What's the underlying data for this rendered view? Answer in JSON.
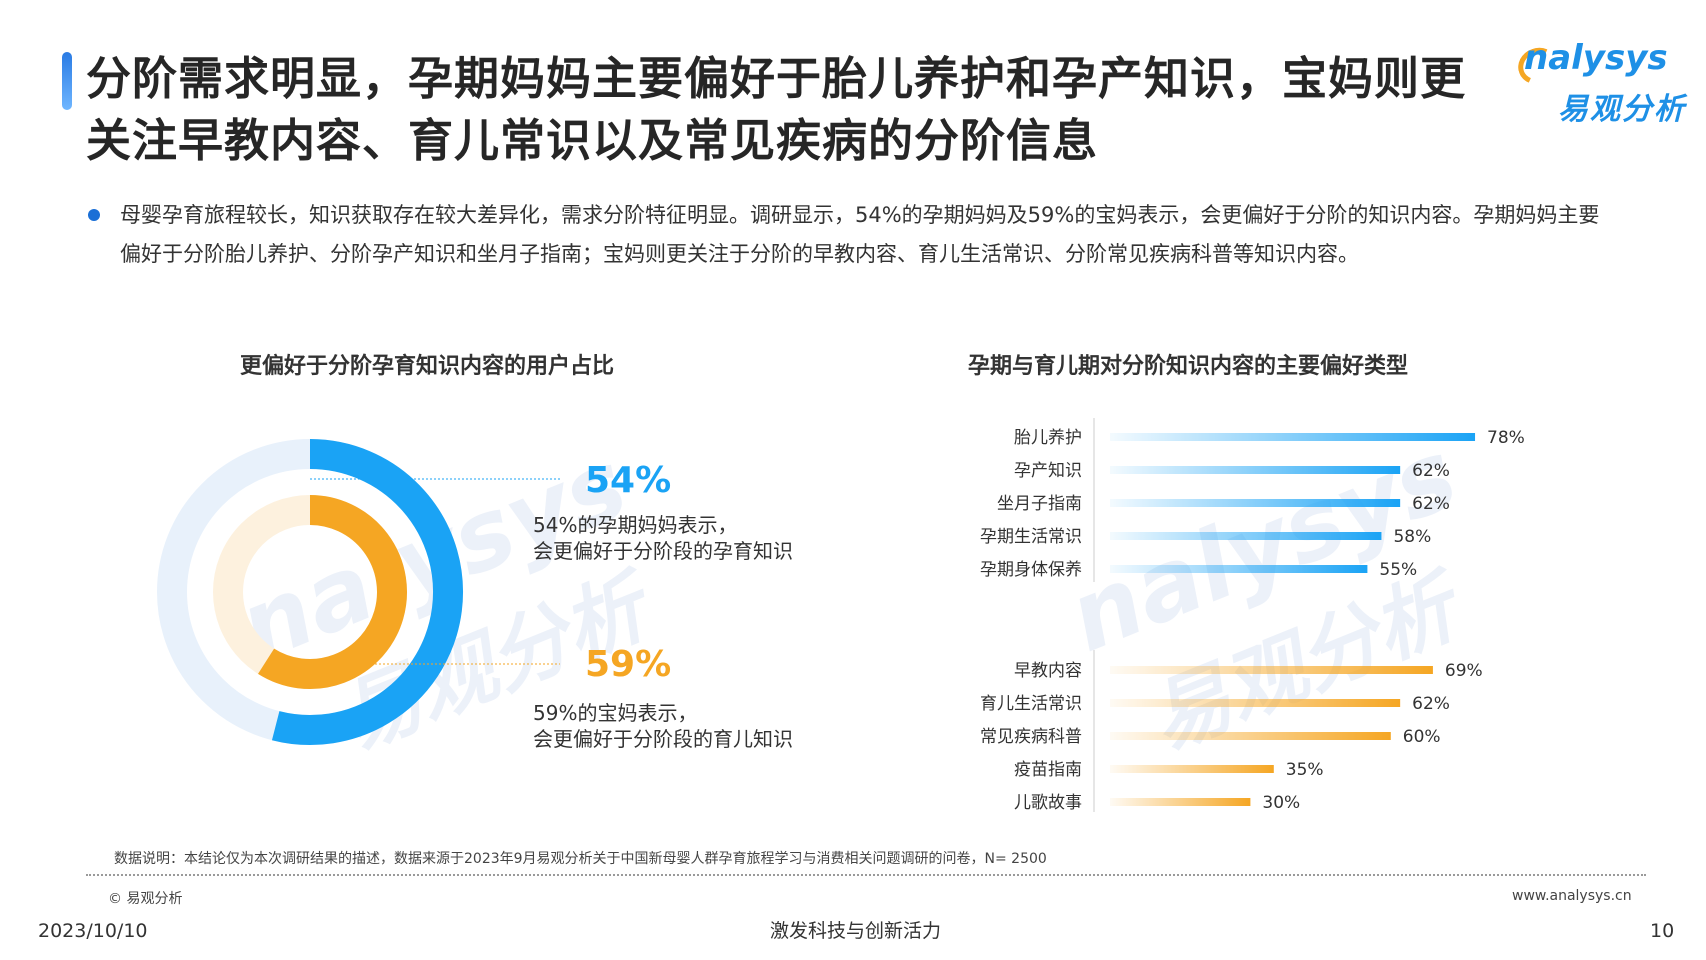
{
  "title": "分阶需求明显，孕期妈妈主要偏好于胎儿养护和孕产知识，宝妈则更关注早教内容、育儿常识以及常见疾病的分阶信息",
  "logo": {
    "en": "nalysys",
    "cn": "易观分析"
  },
  "bullet": "母婴孕育旅程较长，知识获取存在较大差异化，需求分阶特征明显。调研显示，54%的孕期妈妈及59%的宝妈表示，会更偏好于分阶的知识内容。孕期妈妈主要偏好于分阶胎儿养护、分阶孕产知识和坐月子指南；宝妈则更关注于分阶的早教内容、育儿生活常识、分阶常见疾病科普等知识内容。",
  "watermark": {
    "en": "nalysys",
    "cn": "易观分析"
  },
  "chart_data": [
    {
      "type": "pie",
      "title": "更偏好于分阶孕育知识内容的用户占比",
      "series": [
        {
          "name": "孕期妈妈",
          "value": 54,
          "label": "54%",
          "note_line1": "54%的孕期妈妈表示，",
          "note_line2": "会更偏好于分阶段的孕育知识",
          "color": "#1aa3f5"
        },
        {
          "name": "宝妈",
          "value": 59,
          "label": "59%",
          "note_line1": "59%的宝妈表示，",
          "note_line2": "会更偏好于分阶段的育儿知识",
          "color": "#f5a623"
        }
      ]
    },
    {
      "type": "bar",
      "orientation": "horizontal",
      "title": "孕期与育儿期对分阶知识内容的主要偏好类型",
      "groups": [
        {
          "color": "#1aa3f5",
          "categories": [
            "胎儿养护",
            "孕产知识",
            "坐月子指南",
            "孕期生活常识",
            "孕期身体保养"
          ],
          "values": [
            78,
            62,
            62,
            58,
            55
          ],
          "labels": [
            "78%",
            "62%",
            "62%",
            "58%",
            "55%"
          ]
        },
        {
          "color": "#f5a623",
          "categories": [
            "早教内容",
            "育儿生活常识",
            "常见疾病科普",
            "疫苗指南",
            "儿歌故事"
          ],
          "values": [
            69,
            62,
            60,
            35,
            30
          ],
          "labels": [
            "69%",
            "62%",
            "60%",
            "35%",
            "30%"
          ]
        }
      ],
      "xlim": [
        0,
        100
      ]
    }
  ],
  "footer": {
    "note": "数据说明：本结论仅为本次调研结果的描述，数据来源于2023年9月易观分析关于中国新母婴人群孕育旅程学习与消费相关问题调研的问卷，N= 2500",
    "copyright": "© 易观分析",
    "website": "www.analysys.cn",
    "date": "2023/10/10",
    "slogan": "激发科技与创新活力",
    "page": "10"
  }
}
